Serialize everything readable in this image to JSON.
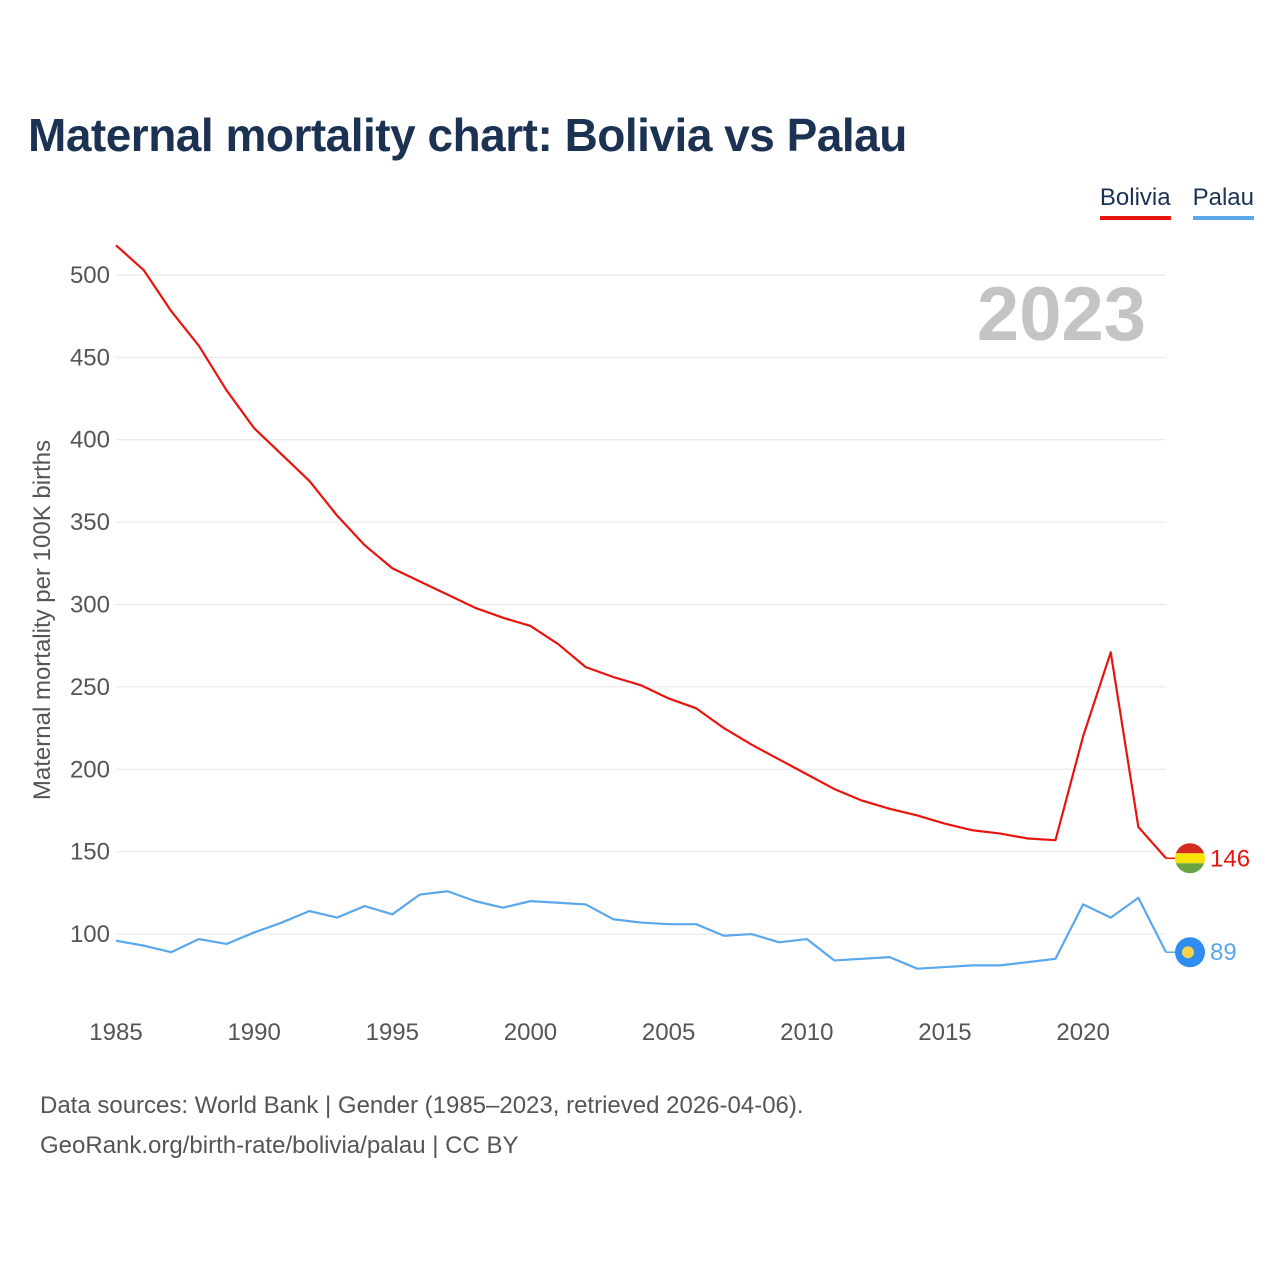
{
  "header": {
    "title": "Maternal mortality chart: Bolivia vs Palau"
  },
  "legend": {
    "bolivia": "Bolivia",
    "palau": "Palau"
  },
  "footer": {
    "line1": "Data sources: World Bank | Gender (1985–2023, retrieved 2026-04-06).",
    "line2": "GeoRank.org/birth-rate/bolivia/palau | CC BY"
  },
  "colors": {
    "bolivia": "#e8150f",
    "palau": "#5aa7ec",
    "title": "#1c3253"
  },
  "chart_data": {
    "type": "line",
    "title": "Maternal mortality chart: Bolivia vs Palau",
    "xlabel": "",
    "ylabel": "Maternal mortality per 100K births",
    "year_watermark": "2023",
    "xlim": [
      1985,
      2023
    ],
    "ylim": [
      60,
      520
    ],
    "x_ticks": [
      1985,
      1990,
      1995,
      2000,
      2005,
      2010,
      2015,
      2020
    ],
    "y_ticks": [
      100,
      150,
      200,
      250,
      300,
      350,
      400,
      450,
      500
    ],
    "grid": true,
    "legend_position": "top-right",
    "x": [
      1985,
      1986,
      1987,
      1988,
      1989,
      1990,
      1991,
      1992,
      1993,
      1994,
      1995,
      1996,
      1997,
      1998,
      1999,
      2000,
      2001,
      2002,
      2003,
      2004,
      2005,
      2006,
      2007,
      2008,
      2009,
      2010,
      2011,
      2012,
      2013,
      2014,
      2015,
      2016,
      2017,
      2018,
      2019,
      2020,
      2021,
      2022,
      2023
    ],
    "series": [
      {
        "name": "Bolivia",
        "color": "#e8150f",
        "end_label": "146",
        "values": [
          518,
          503,
          478,
          457,
          430,
          407,
          391,
          375,
          354,
          336,
          322,
          314,
          306,
          298,
          292,
          287,
          276,
          262,
          256,
          251,
          243,
          237,
          225,
          215,
          206,
          197,
          188,
          181,
          176,
          172,
          167,
          163,
          161,
          158,
          157,
          220,
          271,
          165,
          146
        ]
      },
      {
        "name": "Palau",
        "color": "#5aa7ec",
        "end_label": "89",
        "values": [
          96,
          93,
          89,
          97,
          94,
          101,
          107,
          114,
          110,
          117,
          112,
          124,
          126,
          120,
          116,
          120,
          119,
          118,
          109,
          107,
          106,
          106,
          99,
          100,
          95,
          97,
          84,
          85,
          86,
          79,
          80,
          81,
          81,
          83,
          85,
          118,
          110,
          122,
          89
        ]
      }
    ]
  }
}
